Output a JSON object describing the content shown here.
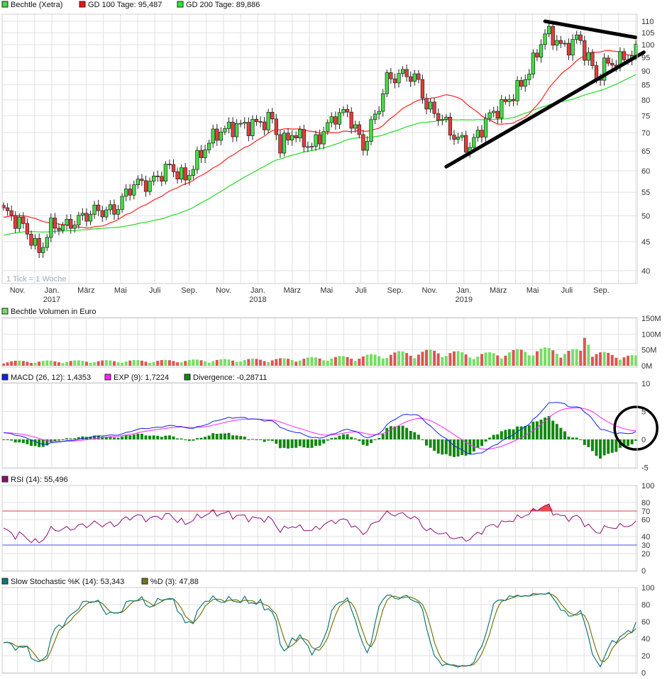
{
  "colors": {
    "up": "#44dd44",
    "down": "#e83a3a",
    "gd100": "#ff2020",
    "gd200": "#22dd22",
    "macd": "#1020ee",
    "exp": "#ff22ff",
    "divergence": "#118811",
    "rsi": "#881177",
    "rsi_fill": "#f04848",
    "stoch_k": "#117777",
    "stoch_d": "#777711",
    "vol_up": "#77dd66",
    "vol_down": "#dd5555"
  },
  "legend": {
    "price": "Bechtle (Xetra)",
    "gd100": "GD 100 Tage: 95,487",
    "gd200": "GD 200 Tage: 89,886",
    "volume": "Bechtle Volumen in Euro",
    "macd": "MACD (26, 12): 1,4353",
    "exp": "EXP (9): 1,7224",
    "divergence": "Divergence: -0,28711",
    "rsi": "RSI (14): 55,496",
    "stoch_k": "Slow Stochastic %K (14): 53,343",
    "stoch_d": "%D (3): 47,88"
  },
  "tick_note": "1 Tick = 1 Woche",
  "chart_data": [
    {
      "type": "candlestick",
      "title": "Bechtle (Xetra)",
      "interval": "weekly",
      "y_scale": "log",
      "ylim": [
        38,
        115
      ],
      "yticks": [
        "110",
        "105",
        "100",
        "95",
        "90",
        "85",
        "80",
        "75",
        "70",
        "65",
        "60",
        "55",
        "50",
        "45",
        "40"
      ],
      "x_labels": [
        [
          "Nov.",
          ""
        ],
        [
          "Jan.",
          "2017"
        ],
        [
          "März",
          ""
        ],
        [
          "Mai",
          ""
        ],
        [
          "Juli",
          ""
        ],
        [
          "Sep.",
          ""
        ],
        [
          "Nov.",
          ""
        ],
        [
          "Jan.",
          "2018"
        ],
        [
          "März",
          ""
        ],
        [
          "Mai",
          ""
        ],
        [
          "Juli",
          ""
        ],
        [
          "Sep.",
          ""
        ],
        [
          "Nov.",
          ""
        ],
        [
          "Jan.",
          "2019"
        ],
        [
          "März",
          ""
        ],
        [
          "Mai",
          ""
        ],
        [
          "Juli",
          ""
        ],
        [
          "Sep.",
          ""
        ]
      ],
      "close_keypoints_week_value": [
        [
          0,
          51
        ],
        [
          5,
          48
        ],
        [
          9,
          43
        ],
        [
          12,
          48
        ],
        [
          16,
          48
        ],
        [
          23,
          51
        ],
        [
          28,
          51
        ],
        [
          33,
          57
        ],
        [
          37,
          57
        ],
        [
          42,
          61
        ],
        [
          46,
          58
        ],
        [
          51,
          66
        ],
        [
          54,
          70
        ],
        [
          59,
          72
        ],
        [
          62,
          72
        ],
        [
          68,
          74
        ],
        [
          70,
          66
        ],
        [
          73,
          70
        ],
        [
          78,
          66
        ],
        [
          84,
          75
        ],
        [
          87,
          76
        ],
        [
          91,
          66
        ],
        [
          95,
          78
        ],
        [
          97,
          87
        ],
        [
          102,
          89
        ],
        [
          105,
          86
        ],
        [
          107,
          78
        ],
        [
          111,
          74
        ],
        [
          114,
          69
        ],
        [
          118,
          66
        ],
        [
          123,
          75
        ],
        [
          127,
          79
        ],
        [
          131,
          85
        ],
        [
          134,
          93
        ],
        [
          137,
          105
        ],
        [
          140,
          102
        ],
        [
          142,
          98
        ],
        [
          145,
          103
        ],
        [
          148,
          95
        ],
        [
          150,
          87
        ],
        [
          152,
          92
        ],
        [
          156,
          94
        ],
        [
          160,
          97
        ]
      ],
      "series": [
        {
          "name": "GD 100 Tage",
          "last": 95.487
        },
        {
          "name": "GD 200 Tage",
          "last": 89.886
        }
      ]
    },
    {
      "type": "bar",
      "title": "Bechtle Volumen in Euro",
      "yticks": [
        "150M",
        "100M",
        "50M",
        "0M"
      ],
      "ylim": [
        0,
        150
      ],
      "unit": "M EUR",
      "volume_level_keypoints_week_value": [
        [
          0,
          12
        ],
        [
          40,
          14
        ],
        [
          70,
          18
        ],
        [
          90,
          25
        ],
        [
          100,
          35
        ],
        [
          110,
          40
        ],
        [
          120,
          30
        ],
        [
          135,
          45
        ],
        [
          145,
          40
        ],
        [
          160,
          25
        ]
      ]
    },
    {
      "type": "line",
      "title": "MACD (26, 12)",
      "yticks": [
        "10",
        "5",
        "0",
        "-5"
      ],
      "ylim": [
        -5,
        10
      ],
      "series": [
        {
          "name": "MACD",
          "last": 1.4353
        },
        {
          "name": "EXP (9)",
          "last": 1.7224
        },
        {
          "name": "Divergence",
          "last": -0.28711
        }
      ]
    },
    {
      "type": "line",
      "title": "RSI (14)",
      "yticks": [
        "100",
        "80",
        "70",
        "60",
        "40",
        "30",
        "20",
        "0"
      ],
      "ylim": [
        0,
        100
      ],
      "levels": [
        70,
        30
      ],
      "series": [
        {
          "name": "RSI (14)",
          "last": 55.496
        }
      ]
    },
    {
      "type": "line",
      "title": "Slow Stochastic",
      "yticks": [
        "100",
        "80",
        "60",
        "40",
        "20",
        "0"
      ],
      "ylim": [
        0,
        100
      ],
      "series": [
        {
          "name": "%K (14)",
          "last": 53.343
        },
        {
          "name": "%D (3)",
          "last": 47.88
        }
      ]
    }
  ],
  "annotations": [
    {
      "type": "trendline",
      "name": "upper-resistance",
      "from": [
        137,
        110
      ],
      "to": [
        160,
        103
      ]
    },
    {
      "type": "trendline",
      "name": "lower-support",
      "from": [
        112,
        61
      ],
      "to": [
        162,
        97
      ]
    },
    {
      "type": "circle",
      "name": "macd-crossover-highlight",
      "panel": "macd",
      "week": 160,
      "value": 1.5
    }
  ]
}
